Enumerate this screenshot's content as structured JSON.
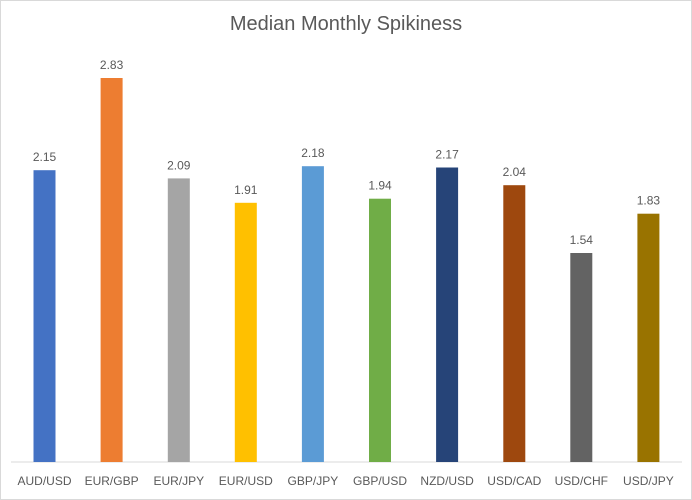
{
  "chart_data": {
    "type": "bar",
    "title": "Median Monthly Spikiness",
    "xlabel": "",
    "ylabel": "",
    "ylim": [
      0,
      3
    ],
    "grid": false,
    "categories": [
      "AUD/USD",
      "EUR/GBP",
      "EUR/JPY",
      "EUR/USD",
      "GBP/JPY",
      "GBP/USD",
      "NZD/USD",
      "USD/CAD",
      "USD/CHF",
      "USD/JPY"
    ],
    "values": [
      2.15,
      2.83,
      2.09,
      1.91,
      2.18,
      1.94,
      2.17,
      2.04,
      1.54,
      1.83
    ],
    "value_labels": [
      "2.15",
      "2.83",
      "2.09",
      "1.91",
      "2.18",
      "1.94",
      "2.17",
      "2.04",
      "1.54",
      "1.83"
    ],
    "colors": [
      "#4472c4",
      "#ed7d31",
      "#a5a5a5",
      "#ffc000",
      "#5b9bd5",
      "#70ad47",
      "#264478",
      "#9e480e",
      "#636363",
      "#997300"
    ]
  }
}
